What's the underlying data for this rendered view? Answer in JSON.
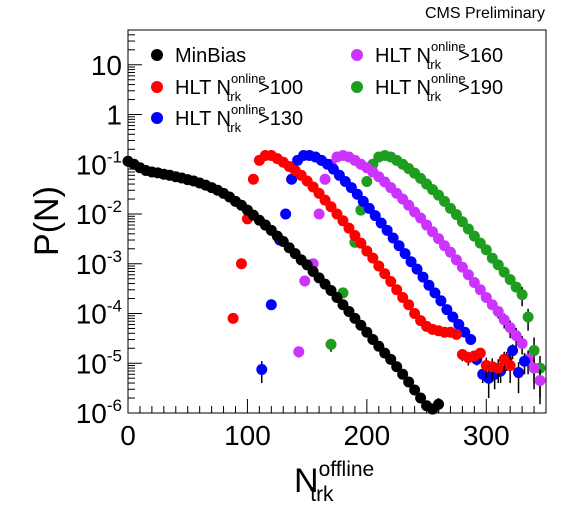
{
  "header": {
    "label": "CMS Preliminary"
  },
  "chart_data": {
    "type": "scatter",
    "title": "",
    "xlabel": {
      "main": "N",
      "sup": "offline",
      "sub": "trk"
    },
    "ylabel": "P(N)",
    "xlim": [
      0,
      350
    ],
    "ylim": [
      1e-06,
      50
    ],
    "yscale": "log",
    "grid": false,
    "legend_position": "top",
    "x_ticks": [
      {
        "value": 0,
        "label": "0"
      },
      {
        "value": 100,
        "label": "100"
      },
      {
        "value": 200,
        "label": "200"
      },
      {
        "value": 300,
        "label": "300"
      }
    ],
    "y_ticks": [
      {
        "value": 10,
        "base": "10",
        "exp": ""
      },
      {
        "value": 1,
        "base": "1",
        "exp": ""
      },
      {
        "value": 0.1,
        "base": "10",
        "exp": "-1"
      },
      {
        "value": 0.01,
        "base": "10",
        "exp": "-2"
      },
      {
        "value": 0.001,
        "base": "10",
        "exp": "-3"
      },
      {
        "value": 0.0001,
        "base": "10",
        "exp": "-4"
      },
      {
        "value": 1e-05,
        "base": "10",
        "exp": "-5"
      },
      {
        "value": 1e-06,
        "base": "10",
        "exp": "-6"
      }
    ],
    "series": [
      {
        "name": "MinBias",
        "legend": {
          "prefix": "MinBias",
          "sup": "",
          "sub": "",
          "suffix": ""
        },
        "color": "#000000",
        "x": [
          0,
          5,
          10,
          15,
          20,
          25,
          30,
          35,
          40,
          45,
          50,
          55,
          60,
          65,
          70,
          75,
          80,
          85,
          90,
          95,
          100,
          105,
          110,
          115,
          120,
          125,
          130,
          135,
          140,
          145,
          150,
          155,
          160,
          165,
          170,
          175,
          180,
          185,
          190,
          195,
          200,
          205,
          210,
          215,
          220,
          225,
          230,
          235,
          240,
          245,
          250,
          255,
          260
        ],
        "y": [
          0.115,
          0.1,
          0.085,
          0.075,
          0.07,
          0.067,
          0.063,
          0.06,
          0.056,
          0.053,
          0.049,
          0.046,
          0.042,
          0.038,
          0.034,
          0.03,
          0.026,
          0.022,
          0.018,
          0.015,
          0.012,
          0.0095,
          0.0075,
          0.006,
          0.0047,
          0.0036,
          0.0028,
          0.0021,
          0.0016,
          0.0012,
          0.00095,
          0.0007,
          0.00052,
          0.00039,
          0.00029,
          0.00021,
          0.00015,
          0.00011,
          8e-05,
          5.8e-05,
          4.2e-05,
          3e-05,
          2.2e-05,
          1.6e-05,
          1.2e-05,
          8.5e-06,
          6e-06,
          4.2e-06,
          2.9e-06,
          2e-06,
          1.4e-06,
          1.2e-06,
          1.5e-06
        ],
        "yerr_up": [
          0,
          0,
          0,
          0,
          0,
          0,
          0,
          0,
          0,
          0,
          0,
          0,
          0,
          0,
          0,
          0,
          0,
          0,
          0,
          0,
          0,
          0,
          0,
          0,
          0,
          0,
          0,
          0,
          0,
          0,
          0,
          0,
          0,
          0,
          0,
          0,
          0,
          0,
          0,
          0,
          0,
          0,
          0,
          0,
          0,
          0,
          0,
          0,
          0,
          0,
          0,
          0,
          5e-07
        ]
      },
      {
        "name": "HLT N trk online >100",
        "legend": {
          "prefix": "HLT N",
          "sup": "online",
          "sub": "trk",
          "suffix": ">100"
        },
        "color": "#ff0000",
        "x": [
          88,
          95,
          100,
          105,
          110,
          115,
          120,
          125,
          130,
          135,
          140,
          145,
          150,
          155,
          160,
          165,
          170,
          175,
          180,
          185,
          190,
          195,
          200,
          205,
          210,
          215,
          220,
          225,
          230,
          235,
          240,
          245,
          250,
          255,
          260,
          265,
          270,
          275,
          280,
          285,
          290,
          295,
          300,
          305,
          310,
          315,
          320
        ],
        "y": [
          8e-05,
          0.001,
          0.008,
          0.05,
          0.12,
          0.15,
          0.15,
          0.13,
          0.11,
          0.09,
          0.075,
          0.06,
          0.046,
          0.035,
          0.026,
          0.019,
          0.014,
          0.01,
          0.0073,
          0.0052,
          0.0037,
          0.0026,
          0.0018,
          0.0013,
          0.0009,
          0.00063,
          0.00044,
          0.0003,
          0.00021,
          0.00015,
          0.0001,
          7.2e-05,
          5.5e-05,
          4.8e-05,
          4.5e-05,
          4.2e-05,
          4.2e-05,
          3.8e-05,
          1.5e-05,
          1.3e-05,
          1.4e-05,
          1.6e-05,
          9e-06,
          8.5e-06,
          8e-06,
          1.2e-05,
          9e-06
        ],
        "yerr_up": [
          0,
          0,
          0,
          0,
          0,
          0,
          0,
          0,
          0,
          0,
          0,
          0,
          0,
          0,
          0,
          0,
          0,
          0,
          0,
          0,
          0,
          0,
          0,
          0,
          0,
          0,
          0,
          0,
          0,
          0,
          0,
          0,
          0,
          0,
          0,
          0,
          0,
          0,
          4e-06,
          4e-06,
          4e-06,
          4e-06,
          4e-06,
          4e-06,
          4e-06,
          5e-06,
          5e-06
        ]
      },
      {
        "name": "HLT N trk online >130",
        "legend": {
          "prefix": "HLT N",
          "sup": "online",
          "sub": "trk",
          "suffix": ">130"
        },
        "color": "#0000ff",
        "x": [
          112,
          120,
          127,
          132,
          137,
          142,
          147,
          152,
          157,
          162,
          167,
          172,
          177,
          182,
          187,
          192,
          197,
          202,
          207,
          212,
          217,
          222,
          227,
          232,
          237,
          242,
          247,
          252,
          257,
          262,
          267,
          272,
          277,
          282,
          287,
          292,
          297,
          302,
          307,
          312,
          317,
          322,
          327,
          332
        ],
        "y": [
          7.5e-06,
          0.00015,
          0.003,
          0.01,
          0.05,
          0.12,
          0.15,
          0.15,
          0.14,
          0.12,
          0.1,
          0.08,
          0.06,
          0.045,
          0.034,
          0.025,
          0.018,
          0.013,
          0.0093,
          0.0066,
          0.0047,
          0.0033,
          0.0023,
          0.0016,
          0.0011,
          0.00078,
          0.00054,
          0.00037,
          0.00026,
          0.00018,
          0.00012,
          8.5e-05,
          6e-05,
          4.2e-05,
          3e-05,
          1.2e-05,
          6e-06,
          5e-06,
          6e-06,
          7e-06,
          1.2e-05,
          1.8e-05,
          6.5e-06,
          1.1e-05
        ],
        "yerr_up": [
          3.5e-06,
          0,
          0,
          0,
          0,
          0,
          0,
          0,
          0,
          0,
          0,
          0,
          0,
          0,
          0,
          0,
          0,
          0,
          0,
          0,
          0,
          0,
          0,
          0,
          0,
          0,
          0,
          0,
          0,
          0,
          0,
          0,
          0,
          0,
          0,
          3e-06,
          2e-06,
          3e-06,
          3e-06,
          3e-06,
          5e-06,
          6e-06,
          4e-06,
          5e-06
        ]
      },
      {
        "name": "HLT N trk online >160",
        "legend": {
          "prefix": "HLT N",
          "sup": "online",
          "sub": "trk",
          "suffix": ">160"
        },
        "color": "#cc33ff",
        "x": [
          143,
          148,
          155,
          160,
          165,
          170,
          175,
          180,
          185,
          190,
          195,
          200,
          205,
          210,
          215,
          220,
          225,
          230,
          235,
          240,
          245,
          250,
          255,
          260,
          265,
          270,
          275,
          280,
          285,
          290,
          295,
          300,
          305,
          310,
          315,
          320,
          325,
          330,
          335,
          340,
          345
        ],
        "y": [
          1.7e-05,
          0.00045,
          0.001,
          0.01,
          0.05,
          0.1,
          0.14,
          0.15,
          0.14,
          0.12,
          0.1,
          0.085,
          0.07,
          0.056,
          0.044,
          0.034,
          0.026,
          0.02,
          0.015,
          0.011,
          0.0083,
          0.006,
          0.0044,
          0.0032,
          0.0023,
          0.0017,
          0.0012,
          0.00085,
          0.0006,
          0.00042,
          0.0003,
          0.00021,
          0.00015,
          0.00011,
          7.5e-05,
          5.2e-05,
          3.6e-05,
          2.5e-05,
          1.2e-05,
          8e-06,
          4.5e-06
        ],
        "yerr_up": [
          4e-06,
          0,
          0,
          0,
          0,
          0,
          0,
          0,
          0,
          0,
          0,
          0,
          0,
          0,
          0,
          0,
          0,
          0,
          0,
          0,
          0,
          0,
          0,
          0,
          0,
          0,
          0,
          0,
          0,
          0,
          0,
          0,
          0,
          3e-05,
          2.5e-05,
          2e-05,
          1.5e-05,
          1e-05,
          6e-06,
          4e-06,
          3e-06
        ]
      },
      {
        "name": "HLT N trk online >190",
        "legend": {
          "prefix": "HLT N",
          "sup": "online",
          "sub": "trk",
          "suffix": ">190"
        },
        "color": "#1e9e1e",
        "x": [
          170,
          180,
          190,
          195,
          200,
          205,
          210,
          215,
          220,
          225,
          230,
          235,
          240,
          245,
          250,
          255,
          260,
          265,
          270,
          275,
          280,
          285,
          290,
          295,
          300,
          305,
          310,
          315,
          320,
          325,
          330,
          335,
          340,
          345
        ],
        "y": [
          2.4e-05,
          0.00026,
          0.0027,
          0.012,
          0.045,
          0.1,
          0.14,
          0.15,
          0.14,
          0.12,
          0.1,
          0.082,
          0.066,
          0.052,
          0.04,
          0.031,
          0.024,
          0.018,
          0.013,
          0.0097,
          0.007,
          0.005,
          0.0036,
          0.0026,
          0.0019,
          0.0013,
          0.00095,
          0.00068,
          0.00048,
          0.00034,
          0.00024,
          8.5e-05,
          1.8e-05,
          8e-06
        ],
        "yerr_up": [
          7e-06,
          0,
          0,
          0,
          0,
          0,
          0,
          0,
          0,
          0,
          0,
          0,
          0,
          0,
          0,
          0,
          0,
          0,
          0,
          0,
          0,
          0,
          0,
          0,
          0,
          0,
          0,
          0,
          0,
          0,
          0.0001,
          4e-05,
          1.5e-05,
          6e-06
        ]
      }
    ]
  }
}
